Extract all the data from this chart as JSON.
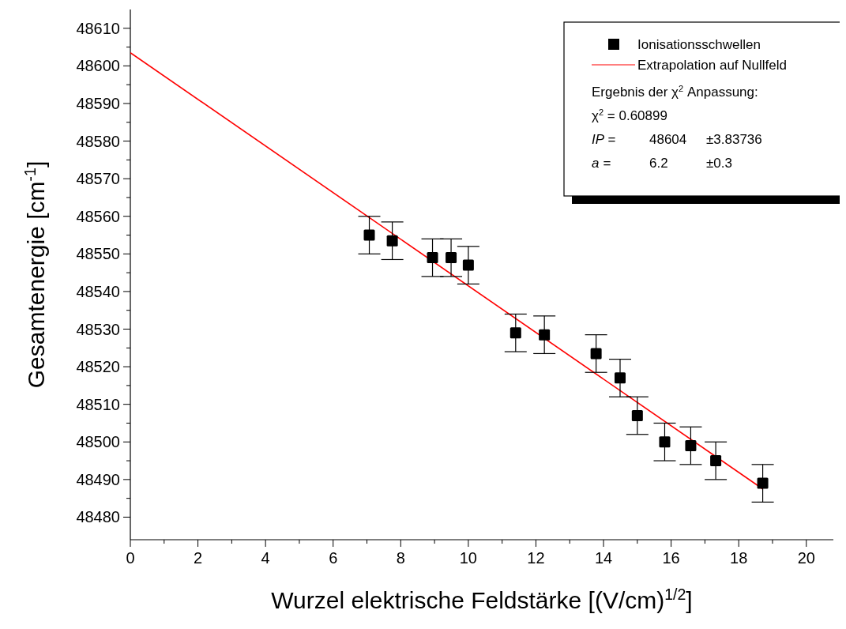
{
  "chart_data": {
    "type": "scatter",
    "xlabel": "Wurzel elektrische Feldstärke [(V/cm)$^{1/2}$]",
    "ylabel": "Gesamtenergie [cm$^{-1}$]",
    "xlim": [
      0,
      20.8
    ],
    "ylim": [
      48474,
      48615
    ],
    "xticks": [
      0,
      {
        "value": 1,
        "label": null
      },
      2,
      {
        "value": 3,
        "label": null
      },
      4,
      {
        "value": 5,
        "label": null
      },
      6,
      {
        "value": 7,
        "label": null
      },
      8,
      {
        "value": 9,
        "label": null
      },
      10,
      {
        "value": 11,
        "label": null
      },
      12,
      {
        "value": 13,
        "label": null
      },
      14,
      {
        "value": 15,
        "label": null
      },
      16,
      {
        "value": 17,
        "label": null
      },
      18,
      {
        "value": 19,
        "label": null
      },
      20
    ],
    "yticks": [
      48480,
      {
        "value": 48485,
        "label": null
      },
      48490,
      {
        "value": 48495,
        "label": null
      },
      48500,
      {
        "value": 48505,
        "label": null
      },
      48510,
      {
        "value": 48515,
        "label": null
      },
      48520,
      {
        "value": 48525,
        "label": null
      },
      48530,
      {
        "value": 48535,
        "label": null
      },
      48540,
      {
        "value": 48545,
        "label": null
      },
      48550,
      {
        "value": 48555,
        "label": null
      },
      48560,
      {
        "value": 48565,
        "label": null
      },
      48570,
      {
        "value": 48575,
        "label": null
      },
      48580,
      {
        "value": 48585,
        "label": null
      },
      48590,
      {
        "value": 48595,
        "label": null
      },
      48600,
      {
        "value": 48605,
        "label": null
      },
      48610
    ],
    "grid": false,
    "legend": "top right",
    "marker": "square",
    "series": [
      {
        "name": "Ionisationsschwellen",
        "color": "#000000",
        "x": [
          7.07,
          7.75,
          8.94,
          9.49,
          10,
          11.4,
          12.25,
          13.78,
          14.49,
          15,
          15.81,
          16.58,
          17.32,
          18.71
        ],
        "values": [
          48555,
          48553.5,
          48549,
          48549,
          48547,
          48529,
          48528.5,
          48523.5,
          48517,
          48507,
          48500,
          48499,
          48495,
          48489
        ],
        "errors": [
          5,
          5,
          5,
          5,
          5,
          5,
          5,
          5,
          5,
          5,
          5,
          5,
          5,
          5
        ]
      },
      {
        "name": "Extrapolation auf Nullfeld",
        "type": "line",
        "color": "#ff0000",
        "x": [
          0,
          18.71
        ],
        "values": [
          48603.5,
          48487.5
        ],
        "marker": "none",
        "line_style": "solid"
      }
    ],
    "annotations": [
      "Ergebnis der χ$^{2}$ Anpassung:",
      "χ$^{2}$ = 0.60899",
      "IP =   48604   ±3.83736",
      "a =   6.2   ±0.3"
    ]
  }
}
